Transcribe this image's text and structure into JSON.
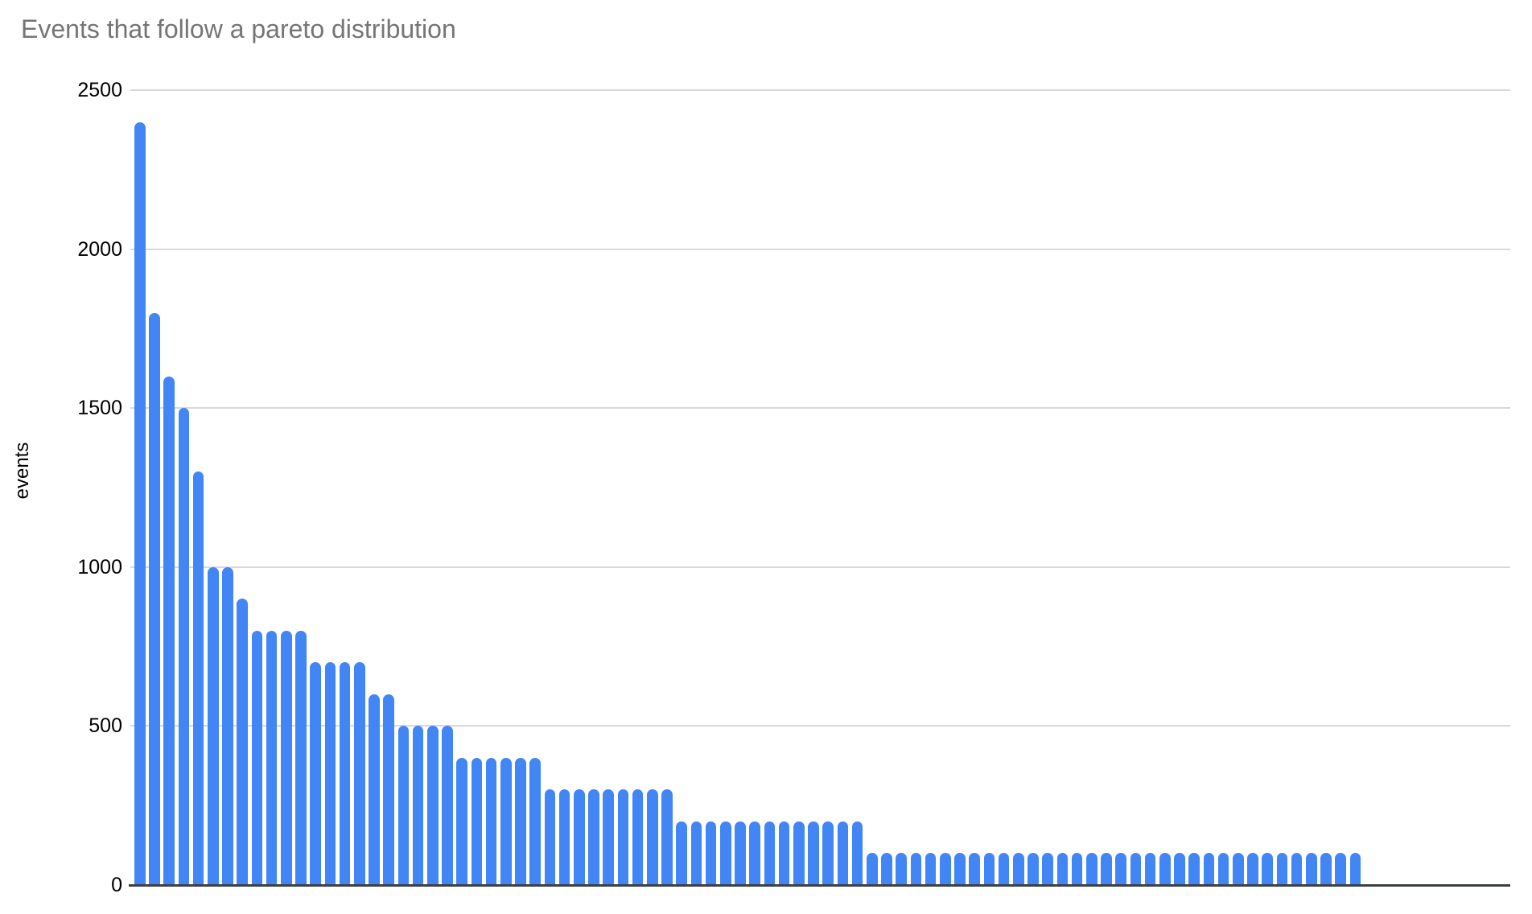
{
  "title": "Events that follow a pareto distribution",
  "colors": {
    "bar": "#4285F4",
    "title_text": "#757575",
    "tick_text": "#000000",
    "gridline": "#d9d9d9",
    "baseline": "#3c4043",
    "background": "#ffffff"
  },
  "chart_data": {
    "type": "bar",
    "title": "Events that follow a pareto distribution",
    "xlabel": "",
    "ylabel": "events",
    "ylim": [
      0,
      2500
    ],
    "yticks": [
      0,
      500,
      1000,
      1500,
      2000,
      2500
    ],
    "grid": true,
    "legend": false,
    "x_tick_labels_shown": false,
    "values": [
      2400,
      1800,
      1600,
      1500,
      1300,
      1000,
      1000,
      900,
      800,
      800,
      800,
      800,
      700,
      700,
      700,
      700,
      600,
      600,
      500,
      500,
      500,
      500,
      400,
      400,
      400,
      400,
      400,
      400,
      300,
      300,
      300,
      300,
      300,
      300,
      300,
      300,
      300,
      200,
      200,
      200,
      200,
      200,
      200,
      200,
      200,
      200,
      200,
      200,
      200,
      200,
      100,
      100,
      100,
      100,
      100,
      100,
      100,
      100,
      100,
      100,
      100,
      100,
      100,
      100,
      100,
      100,
      100,
      100,
      100,
      100,
      100,
      100,
      100,
      100,
      100,
      100,
      100,
      100,
      100,
      100,
      100,
      100,
      100,
      100
    ]
  }
}
